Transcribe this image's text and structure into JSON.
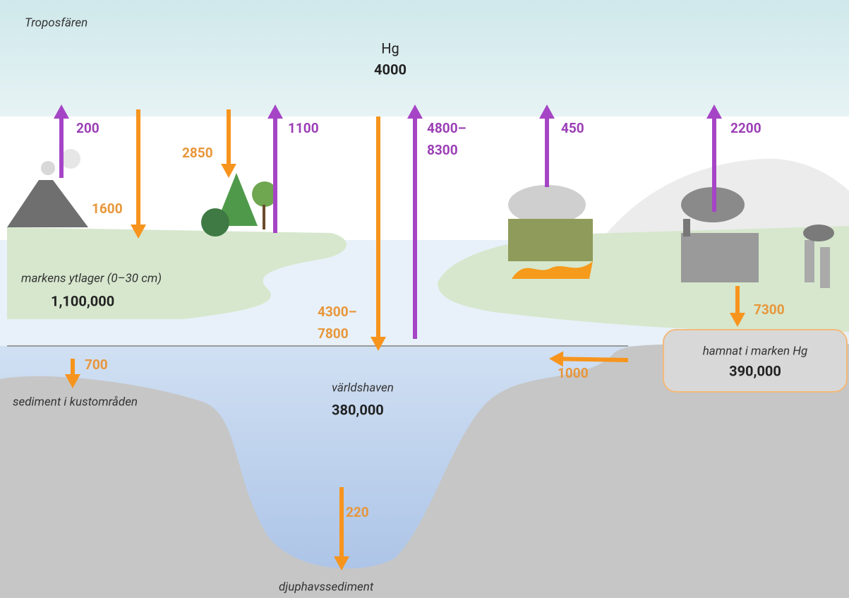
{
  "atmosphere": {
    "label": "Troposfären",
    "element": "Hg",
    "amount": "4000"
  },
  "reservoirs": [
    {
      "label": "markens ytlager (0–30 cm)",
      "amount": "1,100,000"
    },
    {
      "label": "världshaven",
      "amount": "380,000"
    },
    {
      "label": "hamnat i marken Hg",
      "amount": "390,000"
    },
    {
      "label": "sediment i kustområden"
    },
    {
      "label": "djuphavssediment"
    }
  ],
  "fluxes": [
    {
      "lines": [
        "200"
      ],
      "direction": "up"
    },
    {
      "lines": [
        "1600"
      ],
      "direction": "down"
    },
    {
      "lines": [
        "2850"
      ],
      "direction": "down"
    },
    {
      "lines": [
        "1100"
      ],
      "direction": "up"
    },
    {
      "lines": [
        "4300–",
        "7800"
      ],
      "direction": "down"
    },
    {
      "lines": [
        "4800–",
        "8300"
      ],
      "direction": "up"
    },
    {
      "lines": [
        "450"
      ],
      "direction": "up"
    },
    {
      "lines": [
        "2200"
      ],
      "direction": "up"
    },
    {
      "lines": [
        "7300"
      ],
      "direction": "down"
    },
    {
      "lines": [
        "1000"
      ],
      "direction": "left"
    },
    {
      "lines": [
        "700"
      ],
      "direction": "down"
    },
    {
      "lines": [
        "220"
      ],
      "direction": "down"
    }
  ]
}
